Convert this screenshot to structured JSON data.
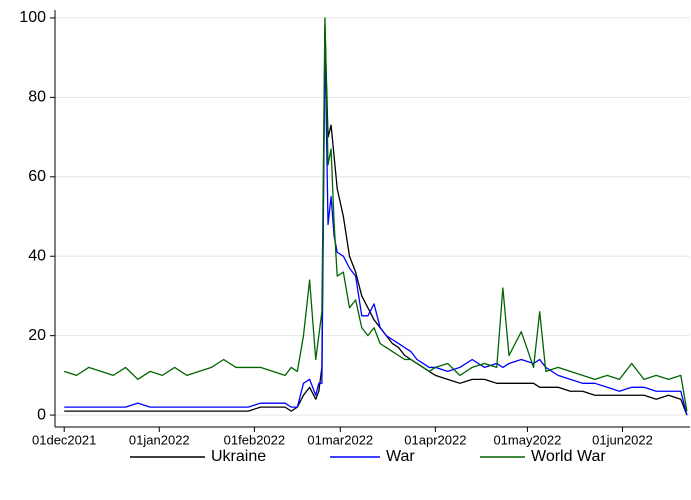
{
  "chart_data": {
    "type": "line",
    "x": [
      "2021-12-01",
      "2021-12-05",
      "2021-12-09",
      "2021-12-13",
      "2021-12-17",
      "2021-12-21",
      "2021-12-25",
      "2021-12-29",
      "2022-01-02",
      "2022-01-06",
      "2022-01-10",
      "2022-01-14",
      "2022-01-18",
      "2022-01-22",
      "2022-01-26",
      "2022-01-30",
      "2022-02-03",
      "2022-02-07",
      "2022-02-11",
      "2022-02-13",
      "2022-02-15",
      "2022-02-17",
      "2022-02-19",
      "2022-02-21",
      "2022-02-22",
      "2022-02-23",
      "2022-02-24",
      "2022-02-25",
      "2022-02-26",
      "2022-02-27",
      "2022-02-28",
      "2022-03-02",
      "2022-03-04",
      "2022-03-06",
      "2022-03-08",
      "2022-03-10",
      "2022-03-12",
      "2022-03-14",
      "2022-03-16",
      "2022-03-18",
      "2022-03-20",
      "2022-03-22",
      "2022-03-24",
      "2022-03-26",
      "2022-03-28",
      "2022-03-30",
      "2022-04-01",
      "2022-04-05",
      "2022-04-09",
      "2022-04-13",
      "2022-04-17",
      "2022-04-21",
      "2022-04-23",
      "2022-04-25",
      "2022-04-29",
      "2022-05-03",
      "2022-05-05",
      "2022-05-07",
      "2022-05-11",
      "2022-05-15",
      "2022-05-19",
      "2022-05-23",
      "2022-05-27",
      "2022-05-31",
      "2022-06-04",
      "2022-06-08",
      "2022-06-12",
      "2022-06-16",
      "2022-06-20",
      "2022-06-22"
    ],
    "series": [
      {
        "name": "Ukraine",
        "color": "#000000",
        "values": [
          1,
          1,
          1,
          1,
          1,
          1,
          1,
          1,
          1,
          1,
          1,
          1,
          1,
          1,
          1,
          1,
          2,
          2,
          2,
          1,
          2,
          5,
          7,
          4,
          6,
          12,
          98,
          70,
          73,
          65,
          57,
          50,
          40,
          36,
          30,
          27,
          24,
          22,
          20,
          18,
          17,
          15,
          14,
          13,
          12,
          11,
          10,
          9,
          8,
          9,
          9,
          8,
          8,
          8,
          8,
          8,
          7,
          7,
          7,
          6,
          6,
          5,
          5,
          5,
          5,
          5,
          4,
          5,
          4,
          0
        ]
      },
      {
        "name": "War",
        "color": "#0000ff",
        "values": [
          2,
          2,
          2,
          2,
          2,
          2,
          3,
          2,
          2,
          2,
          2,
          2,
          2,
          2,
          2,
          2,
          3,
          3,
          3,
          2,
          2,
          8,
          9,
          5,
          8,
          8,
          95,
          48,
          55,
          45,
          41,
          40,
          37,
          35,
          25,
          25,
          28,
          22,
          20,
          19,
          18,
          17,
          16,
          14,
          13,
          12,
          12,
          11,
          12,
          14,
          12,
          13,
          12,
          13,
          14,
          13,
          14,
          12,
          10,
          9,
          8,
          8,
          7,
          6,
          7,
          7,
          6,
          6,
          6,
          0
        ]
      },
      {
        "name": "World War",
        "color": "#006400",
        "values": [
          11,
          10,
          12,
          11,
          10,
          12,
          9,
          11,
          10,
          12,
          10,
          11,
          12,
          14,
          12,
          12,
          12,
          11,
          10,
          12,
          11,
          20,
          34,
          14,
          20,
          26,
          100,
          63,
          67,
          48,
          35,
          36,
          27,
          29,
          22,
          20,
          22,
          18,
          17,
          16,
          15,
          14,
          14,
          13,
          12,
          11,
          12,
          13,
          10,
          12,
          13,
          12,
          32,
          15,
          21,
          12,
          26,
          11,
          12,
          11,
          10,
          9,
          10,
          9,
          13,
          9,
          10,
          9,
          10,
          1
        ]
      }
    ],
    "xlim": [
      "2021-11-28",
      "2022-06-23"
    ],
    "xticks": [
      {
        "value": "2021-12-01",
        "label": "01dec2021"
      },
      {
        "value": "2022-01-01",
        "label": "01jan2022"
      },
      {
        "value": "2022-02-01",
        "label": "01feb2022"
      },
      {
        "value": "2022-03-01",
        "label": "01mar2022"
      },
      {
        "value": "2022-04-01",
        "label": "01apr2022"
      },
      {
        "value": "2022-05-01",
        "label": "01may2022"
      },
      {
        "value": "2022-06-01",
        "label": "01jun2022"
      }
    ],
    "ylim": [
      -3,
      102
    ],
    "yticks": [
      0,
      20,
      40,
      60,
      80,
      100
    ],
    "grid": true,
    "legend": "bottom"
  }
}
